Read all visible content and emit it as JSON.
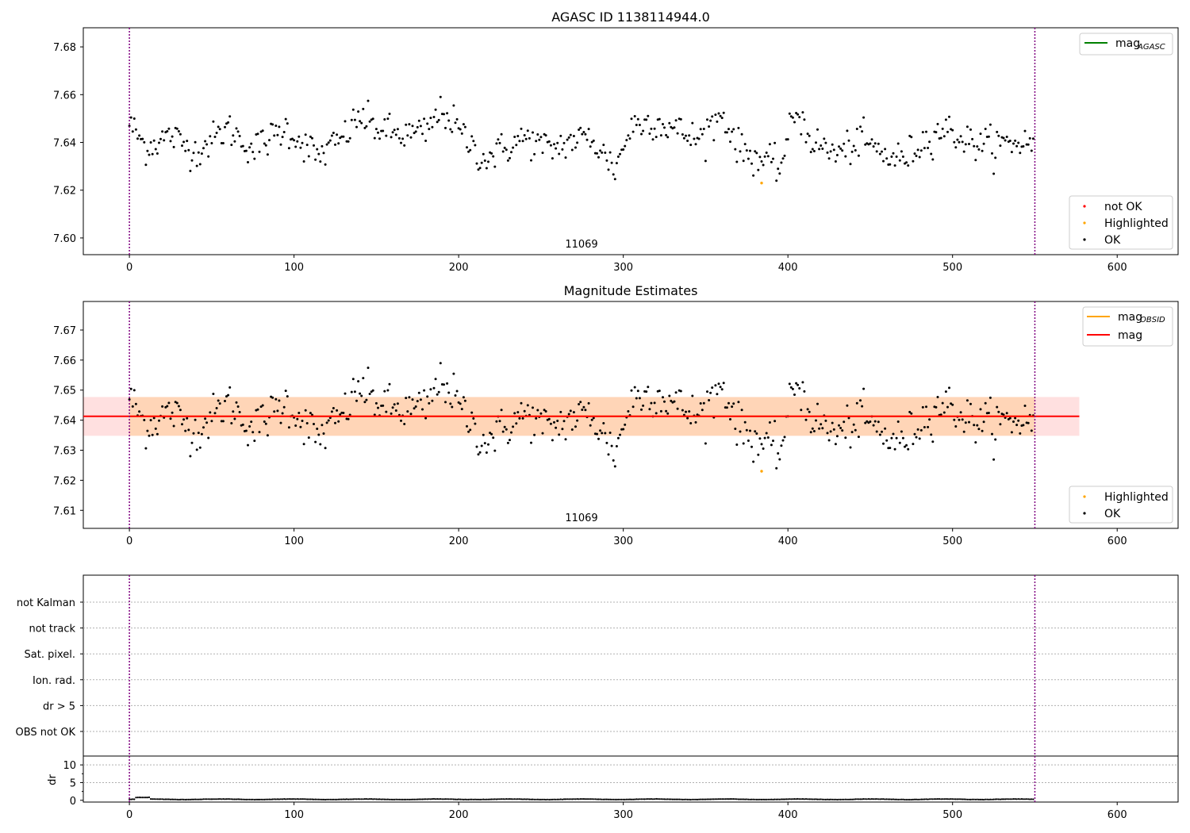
{
  "chart_data": [
    {
      "type": "scatter",
      "title": "AGASC ID 1138114944.0",
      "xlim": [
        -28,
        637
      ],
      "ylim": [
        7.593,
        7.688
      ],
      "x_ticks": [
        "0",
        "100",
        "200",
        "300",
        "400",
        "500",
        "600"
      ],
      "y_ticks": [
        "7.60",
        "7.62",
        "7.64",
        "7.66",
        "7.68"
      ],
      "vlines": [
        0,
        550
      ],
      "annotation": "11069",
      "legend_lines": [
        {
          "label": "mag",
          "sub": "AGASC",
          "color": "#008000"
        }
      ],
      "legend_points": [
        {
          "label": "not OK",
          "color": "#ff0000"
        },
        {
          "label": "Highlighted",
          "color": "#ffa500"
        },
        {
          "label": "OK",
          "color": "#000000"
        }
      ],
      "series": {
        "ok_n": 550,
        "base": 7.641,
        "amp": 0.0075,
        "anchors": [
          [
            0,
            7.648
          ],
          [
            10,
            7.638
          ],
          [
            25,
            7.643
          ],
          [
            40,
            7.636
          ],
          [
            60,
            7.646
          ],
          [
            75,
            7.637
          ],
          [
            95,
            7.646
          ],
          [
            115,
            7.634
          ],
          [
            130,
            7.642
          ],
          [
            140,
            7.651
          ],
          [
            150,
            7.646
          ],
          [
            165,
            7.643
          ],
          [
            180,
            7.644
          ],
          [
            190,
            7.654
          ],
          [
            200,
            7.645
          ],
          [
            215,
            7.633
          ],
          [
            230,
            7.638
          ],
          [
            240,
            7.642
          ],
          [
            255,
            7.637
          ],
          [
            270,
            7.641
          ],
          [
            280,
            7.642
          ],
          [
            295,
            7.629
          ],
          [
            305,
            7.647
          ],
          [
            318,
            7.649
          ],
          [
            330,
            7.646
          ],
          [
            345,
            7.641
          ],
          [
            360,
            7.652
          ],
          [
            370,
            7.638
          ],
          [
            380,
            7.634
          ],
          [
            395,
            7.629
          ],
          [
            405,
            7.654
          ],
          [
            415,
            7.64
          ],
          [
            430,
            7.635
          ],
          [
            445,
            7.641
          ],
          [
            460,
            7.634
          ],
          [
            470,
            7.633
          ],
          [
            485,
            7.642
          ],
          [
            495,
            7.646
          ],
          [
            510,
            7.64
          ],
          [
            525,
            7.639
          ],
          [
            540,
            7.64
          ],
          [
            550,
            7.64
          ]
        ],
        "highlighted": [
          [
            384,
            7.623
          ]
        ]
      }
    },
    {
      "type": "scatter",
      "title": "Magnitude Estimates",
      "xlim": [
        -28,
        637
      ],
      "ylim": [
        7.604,
        7.6795
      ],
      "x_ticks": [
        "0",
        "100",
        "200",
        "300",
        "400",
        "500",
        "600"
      ],
      "y_ticks": [
        "7.61",
        "7.62",
        "7.63",
        "7.64",
        "7.65",
        "7.66",
        "7.67"
      ],
      "vlines": [
        0,
        550
      ],
      "annotation": "11069",
      "mag": 7.6413,
      "mag_band": [
        7.6348,
        7.6477
      ],
      "mag_band_xlim": [
        -28,
        577
      ],
      "legend_lines": [
        {
          "label": "mag",
          "sub": "OBSID",
          "color": "#ffa500"
        },
        {
          "label": "mag",
          "sub": "",
          "color": "#ff0000"
        }
      ],
      "legend_points": [
        {
          "label": "Highlighted",
          "color": "#ffa500"
        },
        {
          "label": "OK",
          "color": "#000000"
        }
      ]
    },
    {
      "type": "scatter",
      "xlim": [
        -28,
        637
      ],
      "y_categories": [
        "not Kalman",
        "not track",
        "Sat. pixel.",
        "Ion. rad.",
        "dr > 5",
        "OBS not OK"
      ],
      "vlines": [
        0,
        550
      ]
    },
    {
      "type": "scatter",
      "ylabel": "dr",
      "xlim": [
        -28,
        637
      ],
      "ylim": [
        -0.5,
        12.5
      ],
      "y_ticks": [
        "0",
        "5",
        "10"
      ],
      "x_ticks": [
        "0",
        "100",
        "200",
        "300",
        "400",
        "500",
        "600"
      ],
      "vlines": [
        0,
        550
      ],
      "dr_level": 0.25
    }
  ]
}
